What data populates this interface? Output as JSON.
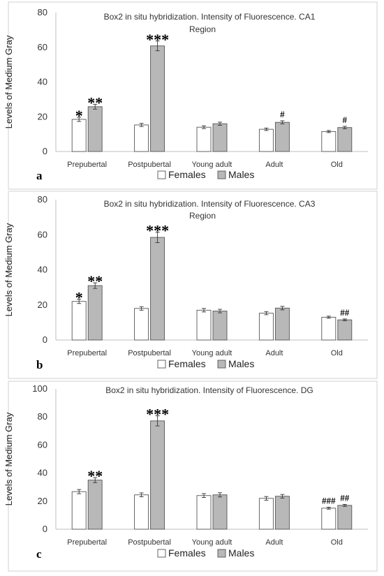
{
  "panels": [
    {
      "letter": "a",
      "title_line1": "Box2 in situ hybridization. Intensity of Fluorescence. CA1",
      "title_line2": "Region",
      "chart_data": {
        "type": "bar",
        "title": "Box2 in situ hybridization. Intensity of Fluorescence. CA1 Region",
        "xlabel": "",
        "ylabel": "Levels of Medium Gray",
        "categories": [
          "Prepubertal",
          "Postpubertal",
          "Young adult",
          "Adult",
          "Old"
        ],
        "yticks": [
          "0",
          "20",
          "40",
          "60",
          "80"
        ],
        "ylim": [
          0,
          80
        ],
        "grid": false,
        "legend": "bottom",
        "series": [
          {
            "name": "Females",
            "color": "#ffffff",
            "values": [
              18.5,
              15.3,
              14.0,
              12.8,
              11.5
            ],
            "errors": [
              1.2,
              0.9,
              0.8,
              0.7,
              0.6
            ],
            "annotations": [
              "*",
              "",
              "",
              "",
              ""
            ]
          },
          {
            "name": "Males",
            "color": "#b8b8b8",
            "values": [
              25.8,
              60.8,
              16.0,
              16.8,
              13.8
            ],
            "errors": [
              1.4,
              2.8,
              0.9,
              0.9,
              0.7
            ],
            "annotations": [
              "**",
              "***",
              "",
              "#",
              "#"
            ]
          }
        ]
      }
    },
    {
      "letter": "b",
      "title_line1": "Box2 in situ hybridization. Intensity of Fluorescence. CA3",
      "title_line2": "Region",
      "chart_data": {
        "type": "bar",
        "title": "Box2 in situ hybridization. Intensity of Fluorescence. CA3 Region",
        "xlabel": "",
        "ylabel": "Levels of Medium Gray",
        "categories": [
          "Prepubertal",
          "Postpubertal",
          "Young adult",
          "Adult",
          "Old"
        ],
        "yticks": [
          "0",
          "20",
          "40",
          "60",
          "80"
        ],
        "ylim": [
          0,
          80
        ],
        "grid": false,
        "legend": "bottom",
        "series": [
          {
            "name": "Females",
            "color": "#ffffff",
            "values": [
              22.0,
              18.0,
              17.0,
              15.3,
              13.0
            ],
            "errors": [
              1.2,
              1.0,
              1.0,
              0.9,
              0.6
            ],
            "annotations": [
              "*",
              "",
              "",
              "",
              ""
            ]
          },
          {
            "name": "Males",
            "color": "#b8b8b8",
            "values": [
              31.0,
              58.5,
              16.5,
              18.2,
              11.5
            ],
            "errors": [
              1.6,
              3.0,
              1.0,
              1.0,
              0.5
            ],
            "annotations": [
              "**",
              "***",
              "",
              "",
              "##"
            ]
          }
        ]
      }
    },
    {
      "letter": "c",
      "title_line1": "Box2 in situ hybridization. Intensity of Fluorescence. DG",
      "title_line2": "",
      "chart_data": {
        "type": "bar",
        "title": "Box2 in situ hybridization. Intensity of Fluorescence. DG",
        "xlabel": "",
        "ylabel": "Levels of Medium Gray",
        "categories": [
          "Prepubertal",
          "Postpubertal",
          "Young adult",
          "Adult",
          "Old"
        ],
        "yticks": [
          "0",
          "20",
          "40",
          "60",
          "80",
          "100"
        ],
        "ylim": [
          0,
          100
        ],
        "grid": false,
        "legend": "bottom",
        "series": [
          {
            "name": "Females",
            "color": "#ffffff",
            "values": [
              26.8,
              24.5,
              24.0,
              22.0,
              15.0
            ],
            "errors": [
              1.5,
              1.4,
              1.4,
              1.3,
              0.7
            ],
            "annotations": [
              "",
              "",
              "",
              "",
              "###"
            ]
          },
          {
            "name": "Males",
            "color": "#b8b8b8",
            "values": [
              35.0,
              77.2,
              24.5,
              23.5,
              17.0
            ],
            "errors": [
              1.8,
              3.6,
              1.5,
              1.3,
              0.7
            ],
            "annotations": [
              "**",
              "***",
              "",
              "",
              "##"
            ]
          }
        ]
      }
    }
  ]
}
